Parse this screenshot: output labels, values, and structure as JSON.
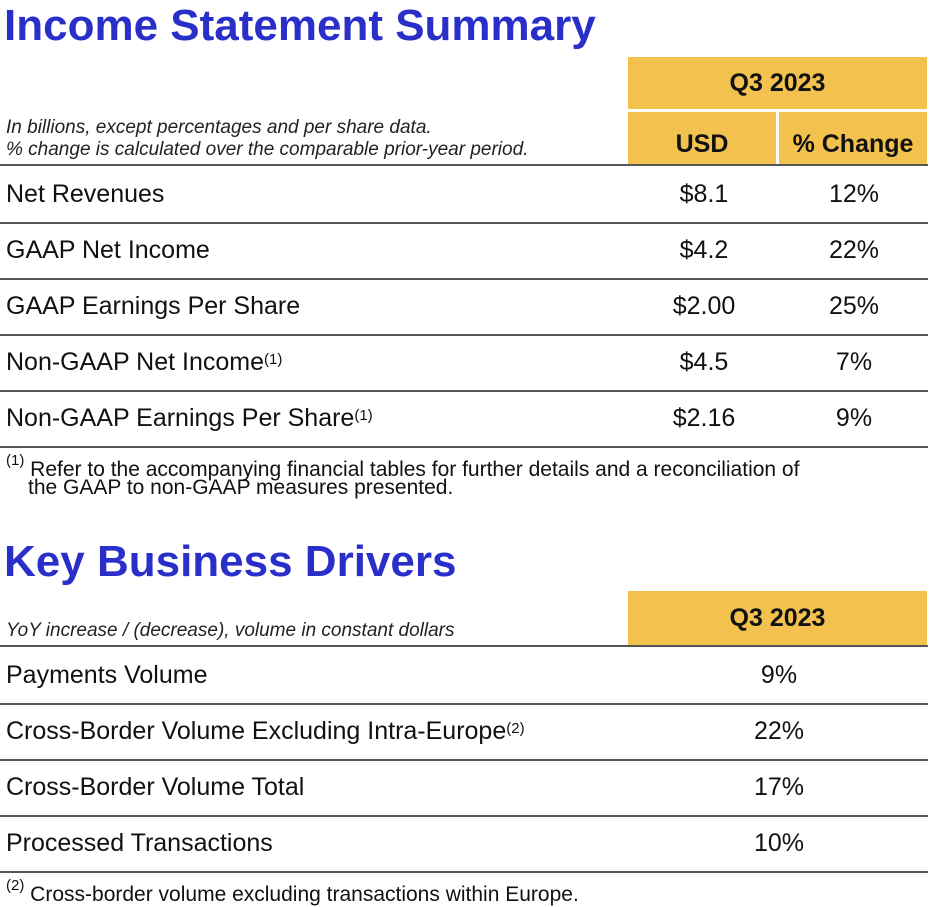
{
  "income": {
    "title": "Income Statement Summary",
    "period": "Q3 2023",
    "col_usd": "USD",
    "col_change": "% Change",
    "note1": "In billions, except percentages and per share data.",
    "note2": "% change is calculated over the comparable prior-year period.",
    "rows": [
      {
        "label": "Net Revenues",
        "sup": "",
        "usd": "$8.1",
        "change": "12%"
      },
      {
        "label": "GAAP Net Income",
        "sup": "",
        "usd": "$4.2",
        "change": "22%"
      },
      {
        "label": "GAAP Earnings Per Share",
        "sup": "",
        "usd": "$2.00",
        "change": "25%"
      },
      {
        "label": "Non-GAAP Net Income",
        "sup": "(1)",
        "usd": "$4.5",
        "change": "7%"
      },
      {
        "label": "Non-GAAP Earnings Per Share",
        "sup": "(1)",
        "usd": "$2.16",
        "change": "9%"
      }
    ],
    "footnote_mark": "(1)",
    "footnote_line1": " Refer to the accompanying financial tables for further details and a reconciliation of",
    "footnote_line2": "the GAAP to non-GAAP measures presented."
  },
  "drivers": {
    "title": "Key Business Drivers",
    "period": "Q3 2023",
    "note": "YoY increase / (decrease), volume in constant dollars",
    "rows": [
      {
        "label": "Payments Volume",
        "sup": "",
        "value": "9%"
      },
      {
        "label": "Cross-Border Volume Excluding Intra-Europe",
        "sup": "(2)",
        "value": "22%"
      },
      {
        "label": "Cross-Border Volume Total",
        "sup": "",
        "value": "17%"
      },
      {
        "label": "Processed Transactions",
        "sup": "",
        "value": "10%"
      }
    ],
    "footnote_mark": "(2)",
    "footnote_text": " Cross-border volume excluding transactions within Europe."
  },
  "colors": {
    "title_blue": "#2a2fc9",
    "header_gold": "#f2c14e"
  }
}
